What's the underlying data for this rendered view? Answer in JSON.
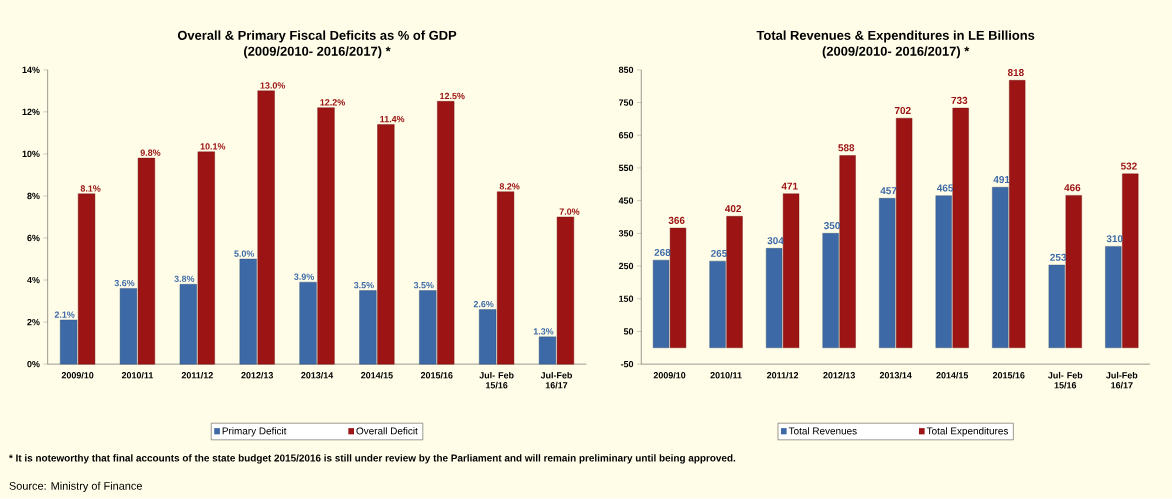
{
  "chart_data": [
    {
      "type": "bar",
      "title": "Overall & Primary Fiscal Deficits as % of GDP",
      "subtitle": "(2009/2010- 2016/2017)  *",
      "categories": [
        "2009/10",
        "2010/11",
        "2011/12",
        "2012/13",
        "2013/14",
        "2014/15",
        "2015/16",
        "Jul- Feb 15/16",
        "Jul-Feb 16/17"
      ],
      "series": [
        {
          "name": "Primary Deficit",
          "color": "#3d6aa6",
          "values": [
            2.1,
            3.6,
            3.8,
            5.0,
            3.9,
            3.5,
            3.5,
            2.6,
            1.3
          ],
          "value_labels": [
            "2.1%",
            "3.6%",
            "3.8%",
            "5.0%",
            "3.9%",
            "3.5%",
            "3.5%",
            "2.6%",
            "1.3%"
          ]
        },
        {
          "name": "Overall Deficit",
          "color": "#9c1414",
          "values": [
            8.1,
            9.8,
            10.1,
            13.0,
            12.2,
            11.4,
            12.5,
            8.2,
            7.0
          ],
          "value_labels": [
            "8.1%",
            "9.8%",
            "10.1%",
            "13.0%",
            "12.2%",
            "11.4%",
            "12.5%",
            "8.2%",
            "7.0%"
          ]
        }
      ],
      "ylim": [
        0,
        14
      ],
      "data_labels": false,
      "yticks": [
        {
          "value": 0,
          "label": "0%"
        },
        {
          "value": 2,
          "label": "2%"
        },
        {
          "value": 4,
          "label": "4%"
        },
        {
          "value": 6,
          "label": "6%"
        },
        {
          "value": 8,
          "label": "8%"
        },
        {
          "value": 10,
          "label": "10%"
        },
        {
          "value": 12,
          "label": "12%"
        },
        {
          "value": 14,
          "label": "14%"
        }
      ],
      "legend": "bottom",
      "grid": false,
      "annotations": [
        "*  It is noteworthy that final accounts of the state budget 2015/2016  is still under review by the Parliament and will remain preliminary until being approved.",
        "Source: Ministry of Finance"
      ]
    },
    {
      "type": "bar",
      "title": "Total Revenues & Expenditures  in LE Billions",
      "subtitle": "(2009/2010- 2016/2017) *",
      "categories": [
        "2009/10",
        "2010/11",
        "2011/12",
        "2012/13",
        "2013/14",
        "2014/15",
        "2015/16",
        "Jul- Feb 15/16",
        "Jul-Feb 16/17"
      ],
      "series": [
        {
          "name": "Total Revenues",
          "color": "#3d6aa6",
          "values": [
            268,
            265,
            304,
            350,
            457,
            465,
            491,
            253,
            310
          ]
        },
        {
          "name": "Total Expenditures",
          "color": "#9c1414",
          "values": [
            366,
            402,
            471,
            588,
            702,
            733,
            818,
            466,
            532
          ]
        }
      ],
      "ylim": [
        -50,
        850
      ],
      "yticks": [
        -50,
        50,
        150,
        250,
        350,
        450,
        550,
        650,
        750,
        850
      ],
      "data_labels": true,
      "legend": "bottom",
      "grid": false
    }
  ]
}
